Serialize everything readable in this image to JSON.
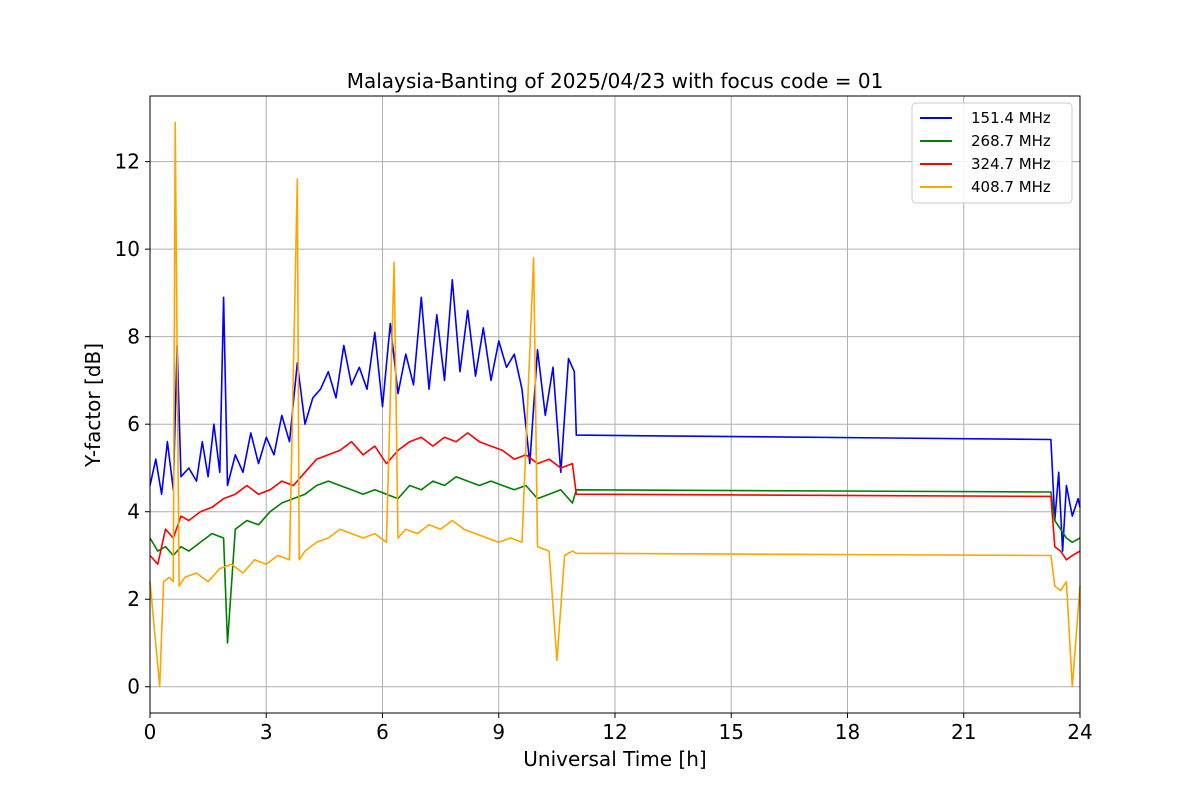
{
  "chart_data": {
    "type": "line",
    "title": "Malaysia-Banting of 2025/04/23 with focus code = 01",
    "xlabel": "Universal Time [h]",
    "ylabel": "Y-factor [dB]",
    "xlim": [
      0,
      24
    ],
    "ylim": [
      -0.6,
      13.5
    ],
    "xticks": [
      0,
      3,
      6,
      9,
      12,
      15,
      18,
      21,
      24
    ],
    "xtick_labels": [
      "0",
      "3",
      "6",
      "9",
      "12",
      "15",
      "18",
      "21",
      "24"
    ],
    "yticks": [
      0,
      2,
      4,
      6,
      8,
      10,
      12
    ],
    "ytick_labels": [
      "0",
      "2",
      "4",
      "6",
      "8",
      "10",
      "12"
    ],
    "grid": true,
    "legend_position": "top-right",
    "series": [
      {
        "name": "151.4 MHz",
        "color": "#0000ff",
        "x": [
          0,
          0.15,
          0.3,
          0.45,
          0.6,
          0.7,
          0.8,
          1.0,
          1.2,
          1.35,
          1.5,
          1.65,
          1.8,
          1.9,
          2.0,
          2.2,
          2.4,
          2.6,
          2.8,
          3.0,
          3.2,
          3.4,
          3.6,
          3.8,
          4.0,
          4.2,
          4.4,
          4.6,
          4.8,
          5.0,
          5.2,
          5.4,
          5.6,
          5.8,
          6.0,
          6.2,
          6.4,
          6.6,
          6.8,
          7.0,
          7.2,
          7.4,
          7.6,
          7.8,
          8.0,
          8.2,
          8.4,
          8.6,
          8.8,
          9.0,
          9.2,
          9.4,
          9.6,
          9.8,
          10.0,
          10.2,
          10.4,
          10.6,
          10.8,
          10.95,
          11.0,
          23.25,
          23.35,
          23.45,
          23.55,
          23.65,
          23.8,
          23.95,
          24.0
        ],
        "y": [
          4.6,
          5.2,
          4.4,
          5.6,
          4.5,
          7.8,
          4.8,
          5.0,
          4.7,
          5.6,
          4.8,
          6.0,
          4.9,
          8.9,
          4.6,
          5.3,
          4.9,
          5.8,
          5.1,
          5.7,
          5.3,
          6.2,
          5.6,
          7.4,
          6.0,
          6.6,
          6.8,
          7.2,
          6.6,
          7.8,
          6.9,
          7.3,
          6.8,
          8.1,
          6.4,
          8.3,
          6.7,
          7.6,
          6.9,
          8.9,
          6.8,
          8.5,
          7.0,
          9.3,
          7.2,
          8.6,
          7.1,
          8.2,
          7.0,
          7.9,
          7.3,
          7.6,
          6.8,
          5.1,
          7.7,
          6.2,
          7.3,
          4.9,
          7.5,
          7.2,
          5.75,
          5.65,
          3.8,
          4.9,
          3.1,
          4.6,
          3.9,
          4.3,
          4.1
        ]
      },
      {
        "name": "268.7 MHz",
        "color": "#008000",
        "x": [
          0,
          0.2,
          0.4,
          0.6,
          0.8,
          1.0,
          1.3,
          1.6,
          1.9,
          2.0,
          2.2,
          2.5,
          2.8,
          3.1,
          3.4,
          3.7,
          4.0,
          4.3,
          4.6,
          4.9,
          5.2,
          5.5,
          5.8,
          6.1,
          6.4,
          6.7,
          7.0,
          7.3,
          7.6,
          7.9,
          8.2,
          8.5,
          8.8,
          9.1,
          9.4,
          9.7,
          10.0,
          10.3,
          10.6,
          10.9,
          11.0,
          23.25,
          23.35,
          23.5,
          23.65,
          23.8,
          24.0
        ],
        "y": [
          3.4,
          3.1,
          3.2,
          3.0,
          3.2,
          3.1,
          3.3,
          3.5,
          3.4,
          1.0,
          3.6,
          3.8,
          3.7,
          4.0,
          4.2,
          4.3,
          4.4,
          4.6,
          4.7,
          4.6,
          4.5,
          4.4,
          4.5,
          4.4,
          4.3,
          4.6,
          4.5,
          4.7,
          4.6,
          4.8,
          4.7,
          4.6,
          4.7,
          4.6,
          4.5,
          4.6,
          4.3,
          4.4,
          4.5,
          4.2,
          4.5,
          4.45,
          3.8,
          3.6,
          3.4,
          3.3,
          3.4
        ]
      },
      {
        "name": "324.7 MHz",
        "color": "#ff0000",
        "x": [
          0,
          0.2,
          0.4,
          0.6,
          0.8,
          1.0,
          1.3,
          1.6,
          1.9,
          2.2,
          2.5,
          2.8,
          3.1,
          3.4,
          3.7,
          4.0,
          4.3,
          4.6,
          4.9,
          5.2,
          5.5,
          5.8,
          6.1,
          6.4,
          6.7,
          7.0,
          7.3,
          7.6,
          7.9,
          8.2,
          8.5,
          8.8,
          9.1,
          9.4,
          9.7,
          10.0,
          10.3,
          10.6,
          10.9,
          11.0,
          23.25,
          23.35,
          23.5,
          23.65,
          23.8,
          24.0
        ],
        "y": [
          3.0,
          2.8,
          3.6,
          3.4,
          3.9,
          3.8,
          4.0,
          4.1,
          4.3,
          4.4,
          4.6,
          4.4,
          4.5,
          4.7,
          4.6,
          4.9,
          5.2,
          5.3,
          5.4,
          5.6,
          5.3,
          5.5,
          5.1,
          5.4,
          5.6,
          5.7,
          5.5,
          5.7,
          5.6,
          5.8,
          5.6,
          5.5,
          5.4,
          5.2,
          5.3,
          5.1,
          5.2,
          5.0,
          5.1,
          4.4,
          4.35,
          3.2,
          3.1,
          2.9,
          3.0,
          3.1
        ]
      },
      {
        "name": "408.7 MHz",
        "color": "#ffa500",
        "x": [
          0,
          0.25,
          0.35,
          0.5,
          0.6,
          0.65,
          0.75,
          0.9,
          1.2,
          1.5,
          1.8,
          2.1,
          2.4,
          2.7,
          3.0,
          3.3,
          3.6,
          3.8,
          3.85,
          4.0,
          4.3,
          4.6,
          4.9,
          5.2,
          5.5,
          5.8,
          6.1,
          6.3,
          6.4,
          6.6,
          6.9,
          7.2,
          7.5,
          7.8,
          8.1,
          8.4,
          8.7,
          9.0,
          9.3,
          9.6,
          9.9,
          10.0,
          10.3,
          10.5,
          10.7,
          10.9,
          11.0,
          23.25,
          23.35,
          23.5,
          23.65,
          23.8,
          24.0
        ],
        "y": [
          2.4,
          0.0,
          2.4,
          2.5,
          2.4,
          12.9,
          2.3,
          2.5,
          2.6,
          2.4,
          2.7,
          2.8,
          2.6,
          2.9,
          2.8,
          3.0,
          2.9,
          11.6,
          2.9,
          3.1,
          3.3,
          3.4,
          3.6,
          3.5,
          3.4,
          3.5,
          3.3,
          9.7,
          3.4,
          3.6,
          3.5,
          3.7,
          3.6,
          3.8,
          3.6,
          3.5,
          3.4,
          3.3,
          3.4,
          3.3,
          9.8,
          3.2,
          3.1,
          0.6,
          3.0,
          3.1,
          3.05,
          3.0,
          2.3,
          2.2,
          2.4,
          0.0,
          2.3
        ]
      }
    ]
  }
}
